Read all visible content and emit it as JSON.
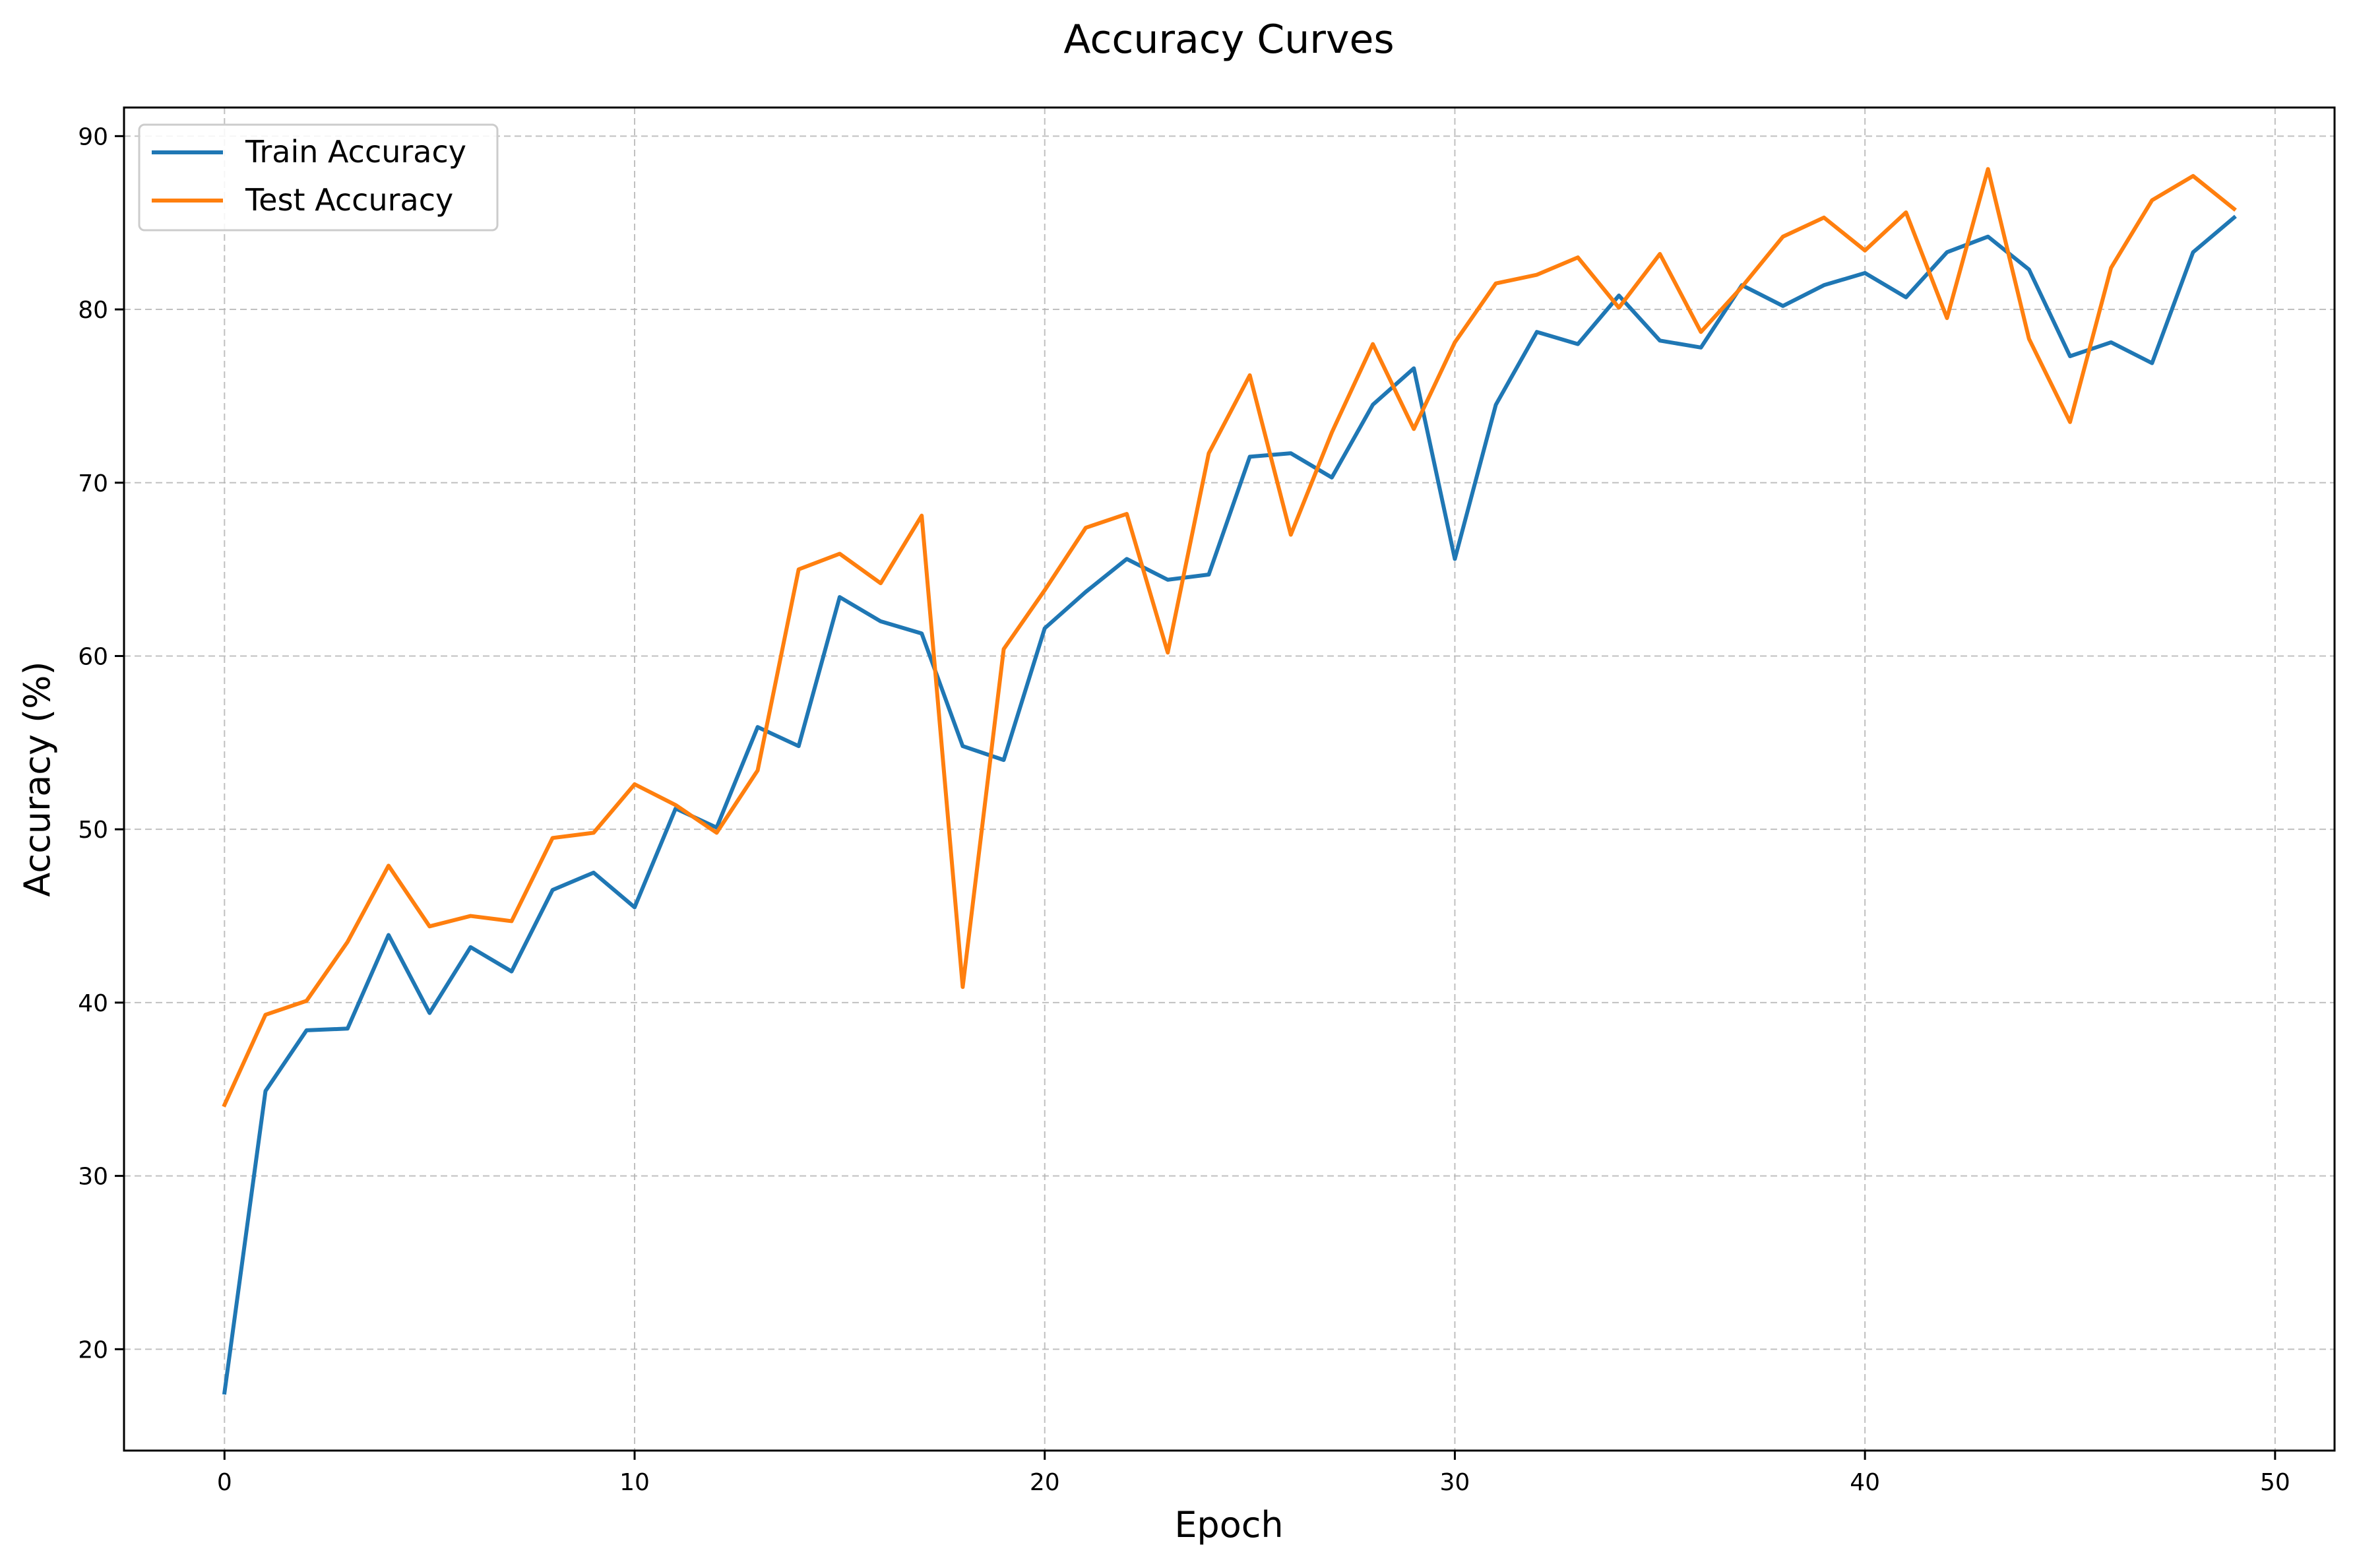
{
  "chart_data": {
    "type": "line",
    "title": "Accuracy Curves",
    "xlabel": "Epoch",
    "ylabel": "Accuracy (%)",
    "xlim": [
      -2.45,
      51.45
    ],
    "ylim": [
      14.15,
      91.65
    ],
    "xticks": [
      0,
      10,
      20,
      30,
      40,
      50
    ],
    "yticks": [
      20,
      30,
      40,
      50,
      60,
      70,
      80,
      90
    ],
    "grid": true,
    "legend": "top-left",
    "x": [
      0,
      1,
      2,
      3,
      4,
      5,
      6,
      7,
      8,
      9,
      10,
      11,
      12,
      13,
      14,
      15,
      16,
      17,
      18,
      19,
      20,
      21,
      22,
      23,
      24,
      25,
      26,
      27,
      28,
      29,
      30,
      31,
      32,
      33,
      34,
      35,
      36,
      37,
      38,
      39,
      40,
      41,
      42,
      43,
      44,
      45,
      46,
      47,
      48,
      49
    ],
    "series": [
      {
        "name": "Train Accuracy",
        "color": "#1f77b4",
        "values": [
          17.5,
          34.9,
          38.4,
          38.5,
          43.9,
          39.4,
          43.2,
          41.8,
          46.5,
          47.5,
          45.5,
          51.2,
          50.1,
          55.9,
          54.8,
          63.4,
          62.0,
          61.3,
          54.8,
          54.0,
          61.6,
          63.7,
          65.6,
          64.4,
          64.7,
          71.5,
          71.7,
          70.3,
          74.5,
          76.6,
          65.6,
          74.5,
          78.7,
          78.0,
          80.8,
          78.2,
          77.8,
          81.4,
          80.2,
          81.4,
          82.1,
          80.7,
          83.3,
          84.2,
          82.3,
          77.3,
          78.1,
          76.9,
          83.3,
          85.3
        ]
      },
      {
        "name": "Test Accuracy",
        "color": "#ff7f0e",
        "values": [
          34.1,
          39.3,
          40.1,
          43.5,
          47.9,
          44.4,
          45.0,
          44.7,
          49.5,
          49.8,
          52.6,
          51.4,
          49.8,
          53.4,
          65.0,
          65.9,
          64.2,
          68.1,
          40.9,
          60.4,
          63.8,
          67.4,
          68.2,
          60.2,
          71.7,
          76.2,
          67.0,
          72.9,
          78.0,
          73.1,
          78.1,
          81.5,
          82.0,
          83.0,
          80.1,
          83.2,
          78.7,
          81.3,
          84.2,
          85.3,
          83.4,
          85.6,
          79.5,
          88.1,
          78.3,
          73.5,
          82.4,
          86.3,
          87.7,
          85.8
        ]
      }
    ]
  }
}
